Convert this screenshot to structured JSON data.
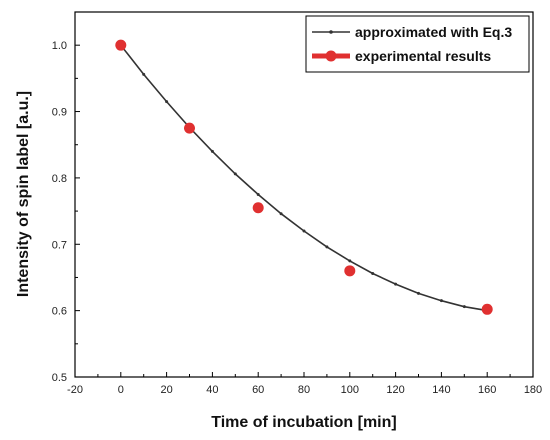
{
  "chart_data": {
    "type": "line",
    "xlabel": "Time of incubation [min]",
    "ylabel": "Intensity of spin label [a.u.]",
    "xlim": [
      -20,
      180
    ],
    "ylim": [
      0.5,
      1.05
    ],
    "xticks": [
      -20,
      0,
      20,
      40,
      60,
      80,
      100,
      120,
      140,
      160,
      180
    ],
    "yticks": [
      0.5,
      0.6,
      0.7,
      0.8,
      0.9,
      1.0
    ],
    "xtick_labels": [
      "-20",
      "0",
      "20",
      "40",
      "60",
      "80",
      "100",
      "120",
      "140",
      "160",
      "180"
    ],
    "ytick_labels": [
      "0.5",
      "0.6",
      "0.7",
      "0.8",
      "0.9",
      "1.0"
    ],
    "legend_position": "top-right",
    "series": [
      {
        "name": "approximated with Eq.3",
        "style": "line",
        "color": "#333333",
        "x": [
          0,
          10,
          20,
          30,
          40,
          50,
          60,
          70,
          80,
          90,
          100,
          110,
          120,
          130,
          140,
          150,
          160
        ],
        "y": [
          1.0,
          0.956,
          0.915,
          0.876,
          0.84,
          0.806,
          0.775,
          0.746,
          0.72,
          0.696,
          0.675,
          0.656,
          0.64,
          0.626,
          0.615,
          0.606,
          0.6
        ]
      },
      {
        "name": "experimental results",
        "style": "markers",
        "color": "#e03030",
        "x": [
          0,
          30,
          60,
          100,
          160
        ],
        "y": [
          1.0,
          0.875,
          0.755,
          0.66,
          0.602
        ]
      }
    ]
  }
}
